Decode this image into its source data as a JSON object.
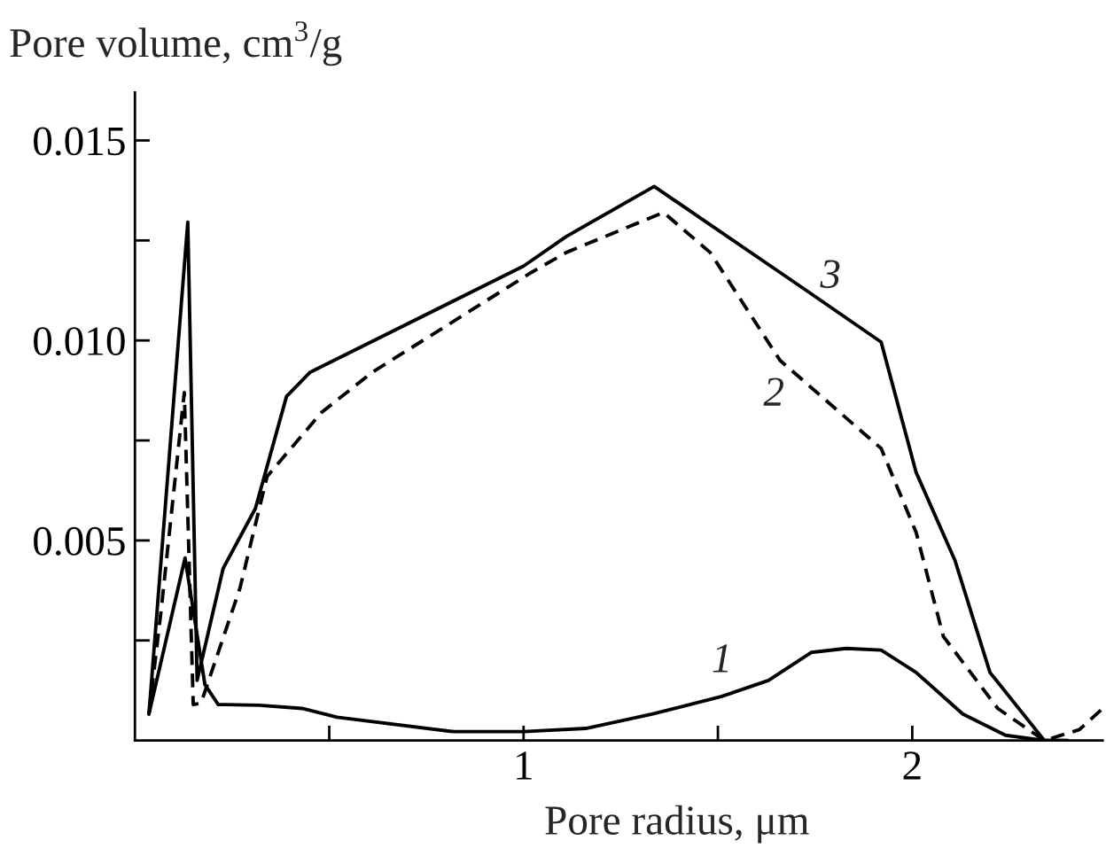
{
  "chart_data": {
    "type": "line",
    "xlabel": "Pore radius, μm",
    "ylabel": "Pore volume, cm$^{3}$/g",
    "xlim": [
      0,
      2.49
    ],
    "ylim": [
      0,
      0.0162
    ],
    "xticks": [
      {
        "value": 0.5,
        "label": null
      },
      1,
      {
        "value": 1.5,
        "label": null
      },
      2
    ],
    "yticks": [
      {
        "value": 0.0025,
        "label": null
      },
      {
        "value": 0.005,
        "label": "0.005"
      },
      {
        "value": 0.0075,
        "label": null
      },
      {
        "value": 0.01,
        "label": "0.010"
      },
      {
        "value": 0.0125,
        "label": null
      },
      {
        "value": 0.015,
        "label": "0.015"
      }
    ],
    "grid": false,
    "legend": false,
    "series": [
      {
        "name": "1",
        "color": "#000000",
        "line_style": "solid",
        "x": [
          0.036,
          0.129,
          0.18,
          0.214,
          0.32,
          0.43,
          0.52,
          0.82,
          1.0,
          1.16,
          1.33,
          1.51,
          1.63,
          1.74,
          1.83,
          1.92,
          2.01,
          2.13,
          2.24,
          2.34,
          2.4
        ],
        "values": [
          0.00066,
          0.00456,
          0.0014,
          0.0009,
          0.00088,
          0.0008,
          0.00058,
          0.00022,
          0.00022,
          0.0003,
          0.00066,
          0.0011,
          0.0015,
          0.0022,
          0.0023,
          0.00226,
          0.0017,
          0.00066,
          0.00013,
          0.0,
          0.0
        ]
      },
      {
        "name": "2",
        "color": "#000000",
        "line_style": "dashed",
        "x": [
          0.036,
          0.068,
          0.127,
          0.15,
          0.17,
          0.27,
          0.34,
          0.48,
          0.61,
          1.02,
          1.11,
          1.36,
          1.48,
          1.66,
          1.92,
          2.01,
          2.08,
          2.22,
          2.34,
          2.43,
          2.49
        ],
        "values": [
          0.00066,
          0.0033,
          0.0087,
          0.0009,
          0.00093,
          0.0038,
          0.0066,
          0.0082,
          0.0092,
          0.0117,
          0.0122,
          0.0132,
          0.0122,
          0.0095,
          0.0073,
          0.0052,
          0.0026,
          0.0008,
          0.0,
          0.00027,
          0.0008
        ]
      },
      {
        "name": "3",
        "color": "#000000",
        "line_style": "solid",
        "x": [
          0.036,
          0.136,
          0.16,
          0.227,
          0.31,
          0.39,
          0.45,
          1.0,
          1.11,
          1.336,
          1.72,
          1.92,
          2.01,
          2.11,
          2.2,
          2.34,
          2.4
        ],
        "values": [
          0.00066,
          0.01296,
          0.0015,
          0.0043,
          0.0058,
          0.0086,
          0.0092,
          0.01186,
          0.0126,
          0.01385,
          0.0113,
          0.00996,
          0.0067,
          0.0045,
          0.0017,
          0.0,
          0.0
        ]
      }
    ]
  }
}
